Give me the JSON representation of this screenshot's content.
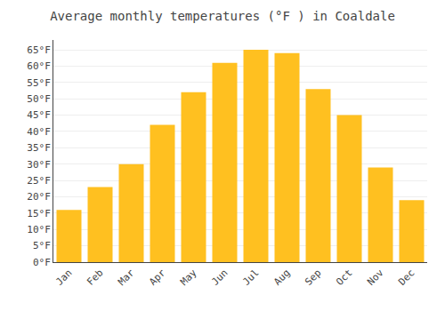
{
  "chart_data": {
    "type": "bar",
    "title": "Average monthly temperatures (°F ) in Coaldale",
    "categories": [
      "Jan",
      "Feb",
      "Mar",
      "Apr",
      "May",
      "Jun",
      "Jul",
      "Aug",
      "Sep",
      "Oct",
      "Nov",
      "Dec"
    ],
    "values": [
      16,
      23,
      30,
      42,
      52,
      61,
      65,
      64,
      53,
      45,
      29,
      19
    ],
    "color": "#FFC020",
    "ylim": [
      0,
      68
    ],
    "yticks": [
      {
        "value": 0,
        "label": "0°F"
      },
      {
        "value": 5,
        "label": "5°F"
      },
      {
        "value": 10,
        "label": "10°F"
      },
      {
        "value": 15,
        "label": "15°F"
      },
      {
        "value": 20,
        "label": "20°F"
      },
      {
        "value": 25,
        "label": "25°F"
      },
      {
        "value": 30,
        "label": "30°F"
      },
      {
        "value": 35,
        "label": "35°F"
      },
      {
        "value": 40,
        "label": "40°F"
      },
      {
        "value": 45,
        "label": "45°F"
      },
      {
        "value": 50,
        "label": "50°F"
      },
      {
        "value": 55,
        "label": "55°F"
      },
      {
        "value": 60,
        "label": "60°F"
      },
      {
        "value": 65,
        "label": "65°F"
      }
    ],
    "grid": true
  }
}
